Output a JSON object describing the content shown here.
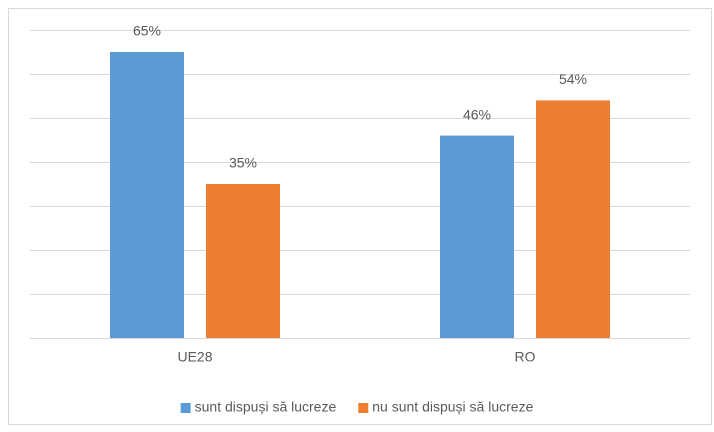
{
  "chart_data": {
    "type": "bar",
    "categories": [
      "UE28",
      "RO"
    ],
    "series": [
      {
        "name": "sunt dispuși să lucreze",
        "color": "#5b9bd5",
        "values": [
          65,
          46
        ],
        "value_labels": [
          "65%",
          "46%"
        ]
      },
      {
        "name": "nu sunt dispuși să lucreze",
        "color": "#ed7d31",
        "values": [
          35,
          54
        ],
        "value_labels": [
          "35%",
          "54%"
        ]
      }
    ],
    "ylim": [
      0,
      70
    ],
    "yticks": [
      0,
      10,
      20,
      30,
      40,
      50,
      60,
      70
    ],
    "grid": true,
    "legend": "bottom"
  }
}
